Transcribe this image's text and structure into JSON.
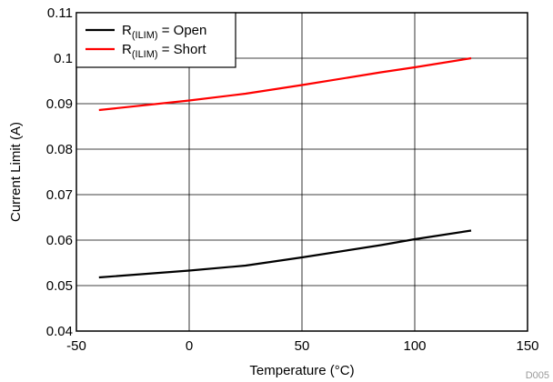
{
  "chart_data": {
    "type": "line",
    "xlabel": "Temperature (°C)",
    "ylabel": "Current Limit (A)",
    "xlim": [
      -50,
      150
    ],
    "ylim": [
      0.04,
      0.11
    ],
    "xticks": [
      -50,
      0,
      50,
      100,
      150
    ],
    "xtick_labels": [
      "-50",
      "0",
      "50",
      "100",
      "150"
    ],
    "yticks": [
      0.04,
      0.05,
      0.06,
      0.07,
      0.08,
      0.09,
      0.1,
      0.11
    ],
    "ytick_labels": [
      "0.04",
      "0.05",
      "0.06",
      "0.07",
      "0.08",
      "0.09",
      "0.1",
      "0.11"
    ],
    "grid": true,
    "legend_position": "top-left",
    "series": [
      {
        "name_main": "R",
        "name_sub": "(ILIM)",
        "name_rest": " = Open",
        "color": "#000000",
        "x": [
          -40,
          0,
          25,
          50,
          85,
          100,
          125
        ],
        "y": [
          0.0518,
          0.0533,
          0.0544,
          0.0562,
          0.0589,
          0.0602,
          0.0621
        ]
      },
      {
        "name_main": "R",
        "name_sub": "(ILIM)",
        "name_rest": " = Short",
        "color": "#ff0000",
        "x": [
          -40,
          0,
          25,
          50,
          85,
          100,
          125
        ],
        "y": [
          0.0886,
          0.0907,
          0.0922,
          0.0941,
          0.0969,
          0.098,
          0.1
        ]
      }
    ],
    "figure_id": "D005"
  }
}
